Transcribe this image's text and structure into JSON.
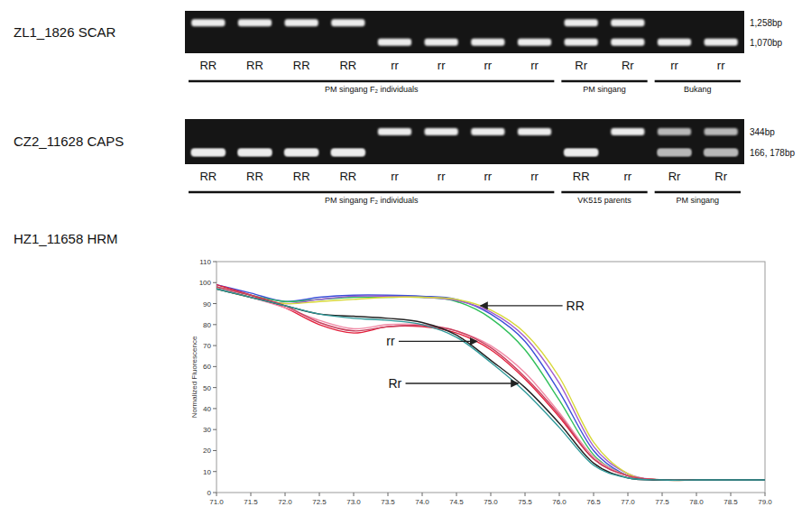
{
  "gels": [
    {
      "title": "ZL1_1826 SCAR",
      "size_markers": [
        {
          "sizes": [
            1258
          ],
          "label": "1,258bp"
        },
        {
          "sizes": [
            1070
          ],
          "label": "1,070bp"
        }
      ],
      "lanes": [
        {
          "genotype": "RR",
          "bands": [
            1258
          ]
        },
        {
          "genotype": "RR",
          "bands": [
            1258
          ]
        },
        {
          "genotype": "RR",
          "bands": [
            1258
          ]
        },
        {
          "genotype": "RR",
          "bands": [
            1258
          ]
        },
        {
          "genotype": "rr",
          "bands": [
            1070
          ]
        },
        {
          "genotype": "rr",
          "bands": [
            1070
          ]
        },
        {
          "genotype": "rr",
          "bands": [
            1070
          ]
        },
        {
          "genotype": "rr",
          "bands": [
            1070
          ]
        },
        {
          "genotype": "Rr",
          "bands": [
            1258,
            1070
          ]
        },
        {
          "genotype": "Rr",
          "bands": [
            1258,
            1070
          ]
        },
        {
          "genotype": "rr",
          "bands": [
            1070
          ]
        },
        {
          "genotype": "rr",
          "bands": [
            1070
          ]
        }
      ],
      "groups": [
        {
          "label": "PM singang F₂ individuals",
          "lanes": [
            0,
            7
          ]
        },
        {
          "label": "PM singang",
          "lanes": [
            8,
            9
          ]
        },
        {
          "label": "Bukang",
          "lanes": [
            10,
            11
          ]
        }
      ]
    },
    {
      "title": "CZ2_11628 CAPS",
      "size_markers": [
        {
          "sizes": [
            344
          ],
          "label": "344bp"
        },
        {
          "sizes": [
            166,
            178
          ],
          "label": "166, 178bp"
        }
      ],
      "lanes": [
        {
          "genotype": "RR",
          "bands": [
            166,
            178
          ]
        },
        {
          "genotype": "RR",
          "bands": [
            166,
            178
          ]
        },
        {
          "genotype": "RR",
          "bands": [
            166,
            178
          ]
        },
        {
          "genotype": "RR",
          "bands": [
            166,
            178
          ]
        },
        {
          "genotype": "rr",
          "bands": [
            344
          ]
        },
        {
          "genotype": "rr",
          "bands": [
            344
          ]
        },
        {
          "genotype": "rr",
          "bands": [
            344
          ]
        },
        {
          "genotype": "rr",
          "bands": [
            344
          ]
        },
        {
          "genotype": "RR",
          "bands": [
            166,
            178
          ]
        },
        {
          "genotype": "rr",
          "bands": [
            344
          ]
        },
        {
          "genotype": "Rr",
          "bands": [
            344,
            166,
            178
          ]
        },
        {
          "genotype": "Rr",
          "bands": [
            344,
            166,
            178
          ]
        }
      ],
      "groups": [
        {
          "label": "PM singang F₂ individuals",
          "lanes": [
            0,
            7
          ]
        },
        {
          "label": "VK515 parents",
          "lanes": [
            8,
            9
          ]
        },
        {
          "label": "PM singang",
          "lanes": [
            10,
            11
          ]
        }
      ]
    }
  ],
  "chart_data": {
    "type": "line",
    "title": "HZ1_11658 HRM",
    "y_label": "Normalized Fluorescence",
    "x": [
      71,
      71.5,
      72,
      72.5,
      73,
      73.5,
      74,
      74.5,
      75,
      75.5,
      76,
      76.5,
      77,
      77.5,
      78,
      78.5,
      79
    ],
    "series": [
      {
        "color": "#3b4fd8",
        "values": [
          99,
          95,
          91,
          93,
          94,
          94,
          93.5,
          92,
          85,
          72,
          48,
          20,
          8,
          6,
          6,
          6,
          6
        ]
      },
      {
        "color": "#2fbf5a",
        "values": [
          98,
          94,
          91,
          92,
          93,
          93,
          93,
          91,
          83,
          68,
          44,
          18,
          8,
          6,
          6,
          6,
          6
        ]
      },
      {
        "color": "#a05ad0",
        "values": [
          97,
          93,
          90,
          92,
          93.5,
          93.5,
          93,
          91.5,
          86,
          74,
          52,
          22,
          9,
          6,
          6,
          6,
          6
        ]
      },
      {
        "color": "#d8d83a",
        "values": [
          97,
          93,
          90,
          91,
          92,
          93,
          93,
          92,
          87,
          76,
          55,
          24,
          9,
          6,
          6,
          6,
          6
        ]
      },
      {
        "color": "#e3203c",
        "values": [
          99,
          94,
          88,
          80,
          76,
          79,
          79,
          76,
          68,
          54,
          36,
          16,
          8,
          6,
          6,
          6,
          6
        ]
      },
      {
        "color": "#f08aa6",
        "values": [
          98,
          93,
          88,
          82,
          78,
          80,
          80,
          77,
          70,
          57,
          38,
          17,
          8,
          6,
          6,
          6,
          6
        ]
      },
      {
        "color": "#c9405e",
        "values": [
          98,
          94,
          89,
          81,
          77,
          79,
          79.5,
          77,
          69,
          55,
          37,
          16,
          8,
          6,
          6,
          6,
          6
        ]
      },
      {
        "color": "#222222",
        "values": [
          97,
          93,
          89,
          85,
          84,
          83,
          81,
          75,
          63,
          50,
          33,
          14,
          7,
          6,
          6,
          6,
          6
        ]
      },
      {
        "color": "#2f9a9a",
        "values": [
          97,
          93,
          89,
          85,
          83,
          82,
          80,
          74,
          62,
          48,
          31,
          13,
          7,
          6,
          6,
          6,
          6
        ]
      }
    ],
    "xlim": [
      71,
      79
    ],
    "ylim": [
      0,
      110
    ],
    "xticks": [
      {
        "value": 71,
        "label": "71.0"
      },
      {
        "value": 71.5,
        "label": "71.5"
      },
      {
        "value": 72,
        "label": "72.0"
      },
      {
        "value": 72.5,
        "label": "72.5"
      },
      {
        "value": 73,
        "label": "73.0"
      },
      {
        "value": 73.5,
        "label": "73.5"
      },
      {
        "value": 74,
        "label": "74.0"
      },
      {
        "value": 74.5,
        "label": "74.5"
      },
      {
        "value": 75,
        "label": "75.0"
      },
      {
        "value": 75.5,
        "label": "75.5"
      },
      {
        "value": 76,
        "label": "76.0"
      },
      {
        "value": 76.5,
        "label": "76.5"
      },
      {
        "value": 77,
        "label": "77.0"
      },
      {
        "value": 77.5,
        "label": "77.5"
      },
      {
        "value": 78,
        "label": "78.0"
      },
      {
        "value": 78.5,
        "label": "78.5"
      },
      {
        "value": 79,
        "label": "79.0"
      }
    ],
    "yticks": [
      0,
      10,
      20,
      30,
      40,
      50,
      60,
      70,
      80,
      90,
      100,
      110
    ],
    "grid": false,
    "annotations": [
      {
        "text": "RR",
        "x": 76.1,
        "y": 89,
        "target_x": 74.85,
        "target_y": 89
      },
      {
        "text": "rr",
        "x": 73.6,
        "y": 72,
        "target_x": 74.8,
        "target_y": 72
      },
      {
        "text": "Rr",
        "x": 73.7,
        "y": 52,
        "target_x": 75.4,
        "target_y": 52
      }
    ]
  }
}
